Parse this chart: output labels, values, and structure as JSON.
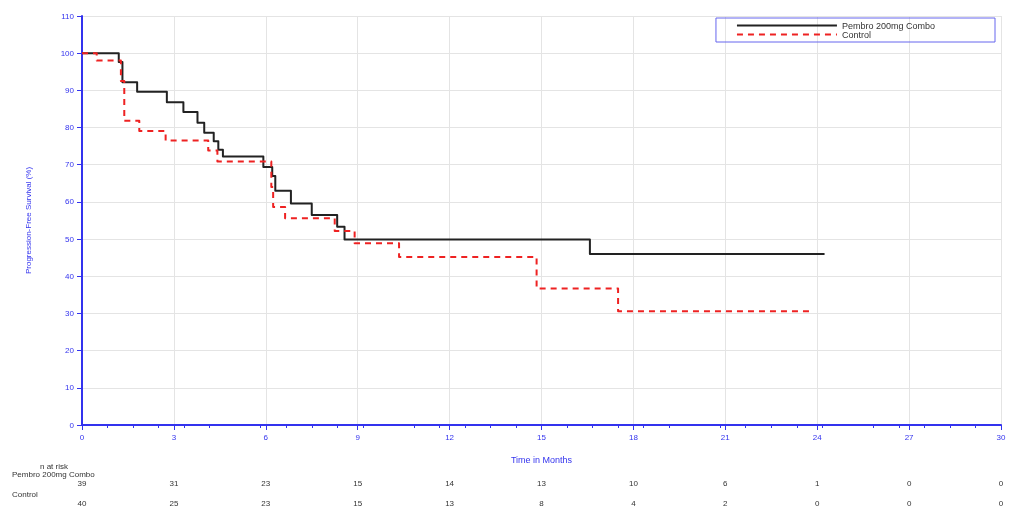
{
  "chart_data": {
    "type": "step",
    "ylabel": "Progression-Free Survival (%)",
    "xlabel": "Time in Months",
    "xlim": [
      0,
      30
    ],
    "xticks": [
      0,
      3,
      6,
      9,
      12,
      15,
      18,
      21,
      24,
      27,
      30
    ],
    "ylim": [
      0,
      110
    ],
    "yticks": [
      0,
      10,
      20,
      30,
      40,
      50,
      60,
      70,
      80,
      90,
      100,
      110
    ],
    "grid": true,
    "legend": "top right",
    "marker": "none",
    "series": [
      {
        "name": "Pembro 200mg Combo",
        "color": "#222222",
        "line_style": "solid",
        "x": [
          0,
          1.2,
          1.32,
          1.8,
          2.77,
          3.31,
          3.77,
          3.99,
          4.3,
          4.45,
          4.6,
          5.92,
          6.21,
          6.31,
          6.82,
          7.5,
          8.33,
          8.57,
          16.58,
          24.24
        ],
        "values": [
          100,
          97.6,
          92.2,
          89.6,
          86.8,
          84.2,
          81.3,
          78.6,
          76.3,
          74,
          72.2,
          69.4,
          67,
          63,
          59.6,
          56.5,
          53.3,
          49.9,
          46,
          46
        ]
      },
      {
        "name": "Control",
        "color": "#ee2222",
        "line_style": "dashed",
        "x": [
          0,
          0.48,
          1.27,
          1.38,
          1.87,
          2.73,
          4.12,
          4.42,
          6.18,
          6.24,
          6.63,
          8.25,
          8.9,
          10.35,
          14.84,
          17.5,
          23.8
        ],
        "values": [
          100,
          98,
          92.5,
          81.8,
          79.1,
          76.5,
          73.8,
          70.9,
          64,
          58.6,
          55.6,
          52.2,
          48.9,
          45.2,
          36.7,
          30.6,
          30.6
        ]
      }
    ],
    "annotations": [
      "n at risk",
      "Pembro 200mg Combo",
      "39",
      "31",
      "23",
      "15",
      "14",
      "13",
      "10",
      "6",
      "1",
      "0",
      "0",
      "Control",
      "40",
      "25",
      "23",
      "15",
      "13",
      "8",
      "4",
      "2",
      "0",
      "0",
      "0"
    ]
  }
}
